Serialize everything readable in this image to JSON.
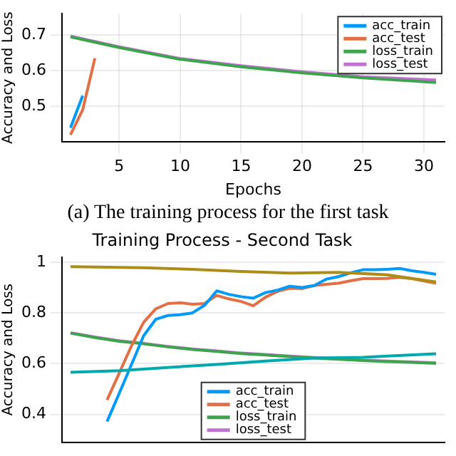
{
  "chart_data": [
    {
      "type": "line",
      "xlabel": "Epochs",
      "ylabel": "Accuracy and Loss",
      "annotations": [
        "(a) The training process for the first task"
      ],
      "xlim": [
        0.3,
        31.7
      ],
      "xticks": [
        5,
        10,
        15,
        20,
        25,
        30
      ],
      "ylim": [
        0.4,
        0.76
      ],
      "yticks": [
        0.5,
        0.6,
        0.7
      ],
      "grid": true,
      "legend": "top right",
      "line_style": "solid",
      "marker": "none",
      "series": [
        {
          "name": "acc_train",
          "color": "#009af9",
          "x": [
            1,
            2
          ],
          "values": [
            0.44,
            0.53
          ]
        },
        {
          "name": "acc_test",
          "color": "#e26f46",
          "x": [
            1,
            2,
            3
          ],
          "values": [
            0.42,
            0.49,
            0.635
          ]
        },
        {
          "name": "loss_train",
          "color": "#3da44d",
          "x": [
            1,
            5,
            10,
            15,
            20,
            25,
            31
          ],
          "values": [
            0.695,
            0.665,
            0.632,
            0.611,
            0.594,
            0.58,
            0.567
          ]
        },
        {
          "name": "loss_test",
          "color": "#c271d2",
          "x": [
            1,
            5,
            10,
            15,
            20,
            25,
            31
          ],
          "values": [
            0.697,
            0.667,
            0.634,
            0.614,
            0.597,
            0.583,
            0.574
          ]
        }
      ]
    },
    {
      "type": "line",
      "title": "Training Process - Second Task",
      "ylabel": "Accuracy and Loss",
      "xlim": [
        0.3,
        31.7
      ],
      "ylim": [
        0.29,
        1.02
      ],
      "yticks": [
        0.4,
        0.6,
        0.8,
        1.0
      ],
      "tick_labels": "y",
      "grid": true,
      "legend": "bottom",
      "line_style": "solid",
      "marker": "none",
      "series": [
        {
          "color": "#ac8d18",
          "x": [
            1,
            7,
            11,
            15,
            19,
            23,
            27,
            31
          ],
          "values": [
            0.982,
            0.978,
            0.972,
            0.963,
            0.957,
            0.96,
            0.95,
            0.922
          ]
        },
        {
          "color": "#00a9ad",
          "x": [
            1,
            5,
            9,
            13,
            17,
            21,
            25,
            27,
            31
          ],
          "values": [
            0.566,
            0.572,
            0.585,
            0.597,
            0.61,
            0.622,
            0.625,
            0.63,
            0.639
          ]
        },
        {
          "name": "acc_train",
          "color": "#009af9",
          "x": [
            4,
            5,
            6,
            7,
            8,
            9,
            10,
            11,
            12,
            13,
            14,
            15,
            16,
            17,
            18,
            19,
            20,
            21,
            22,
            23,
            24,
            25,
            26,
            27,
            28,
            29,
            30,
            31
          ],
          "values": [
            0.372,
            0.483,
            0.596,
            0.71,
            0.775,
            0.79,
            0.793,
            0.8,
            0.83,
            0.887,
            0.873,
            0.864,
            0.858,
            0.88,
            0.89,
            0.905,
            0.9,
            0.908,
            0.933,
            0.943,
            0.958,
            0.97,
            0.97,
            0.972,
            0.975,
            0.966,
            0.96,
            0.952
          ]
        },
        {
          "name": "acc_test",
          "color": "#e26f46",
          "x": [
            4,
            5,
            6,
            7,
            8,
            9,
            10,
            11,
            12,
            13,
            14,
            15,
            16,
            17,
            18,
            19,
            20,
            21,
            22,
            23,
            24,
            25,
            26,
            27,
            28,
            29,
            30,
            31
          ],
          "values": [
            0.457,
            0.563,
            0.67,
            0.763,
            0.816,
            0.837,
            0.84,
            0.834,
            0.837,
            0.869,
            0.855,
            0.845,
            0.828,
            0.862,
            0.885,
            0.897,
            0.896,
            0.908,
            0.913,
            0.917,
            0.927,
            0.935,
            0.935,
            0.936,
            0.94,
            0.935,
            0.926,
            0.917
          ]
        },
        {
          "name": "loss_train",
          "color": "#3da44d",
          "x": [
            1,
            3,
            5,
            7,
            9,
            11,
            13,
            15,
            17,
            19,
            21,
            23,
            25,
            27,
            29,
            31
          ],
          "values": [
            0.72,
            0.703,
            0.688,
            0.678,
            0.666,
            0.656,
            0.648,
            0.64,
            0.634,
            0.628,
            0.622,
            0.617,
            0.612,
            0.608,
            0.605,
            0.601
          ]
        },
        {
          "name": "loss_test",
          "color": "#c271d2",
          "x": [
            1,
            3,
            5,
            7,
            9,
            11,
            13,
            15,
            17,
            19,
            21,
            23,
            25,
            27,
            29,
            31
          ],
          "values": [
            0.722,
            0.705,
            0.69,
            0.68,
            0.668,
            0.658,
            0.65,
            0.642,
            0.636,
            0.63,
            0.624,
            0.619,
            0.614,
            0.61,
            0.607,
            0.603
          ]
        }
      ]
    }
  ]
}
